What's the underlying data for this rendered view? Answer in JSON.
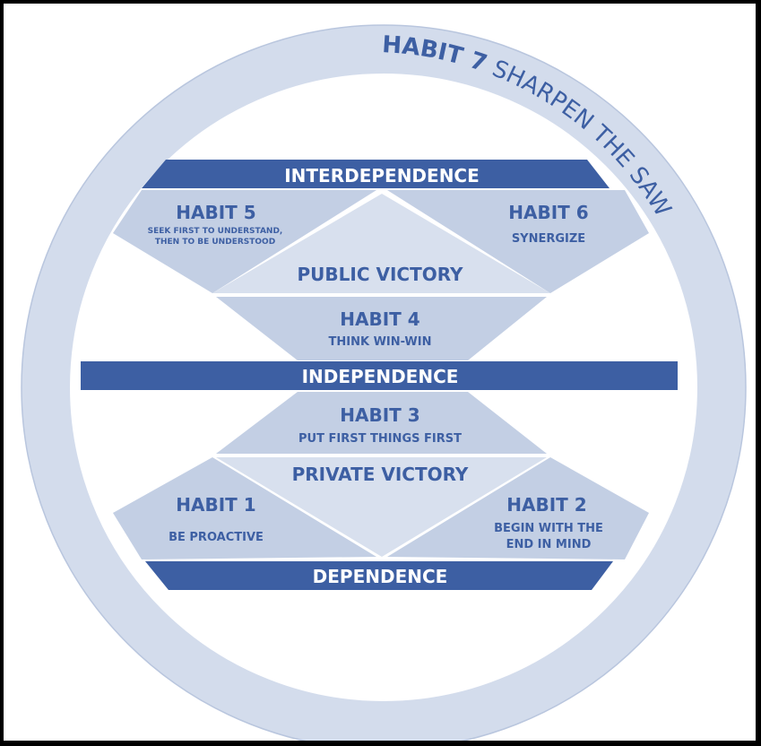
{
  "colors": {
    "band": "#3d5fa3",
    "text": "#3d5fa3",
    "light": "#d8e0ee",
    "mid": "#c3cfe4",
    "ring": "#d3dcec",
    "white": "#ffffff",
    "background": "#000000"
  },
  "ring": {
    "habit_number": "HABIT 7",
    "habit_name": "SHARPEN THE SAW"
  },
  "bands": {
    "interdependence": "INTERDEPENDENCE",
    "independence": "INDEPENDENCE",
    "dependence": "DEPENDENCE"
  },
  "victories": {
    "public": "PUBLIC VICTORY",
    "private": "PRIVATE VICTORY"
  },
  "habits": {
    "h5": {
      "title": "HABIT 5",
      "line1": "SEEK FIRST TO UNDERSTAND,",
      "line2": "THEN TO BE UNDERSTOOD"
    },
    "h6": {
      "title": "HABIT 6",
      "line1": "SYNERGIZE"
    },
    "h4": {
      "title": "HABIT 4",
      "line1": "THINK WIN-WIN"
    },
    "h3": {
      "title": "HABIT 3",
      "line1": "PUT FIRST THINGS FIRST"
    },
    "h1": {
      "title": "HABIT 1",
      "line1": "BE PROACTIVE"
    },
    "h2": {
      "title": "HABIT 2",
      "line1": "BEGIN WITH THE",
      "line2": "END IN MIND"
    }
  }
}
